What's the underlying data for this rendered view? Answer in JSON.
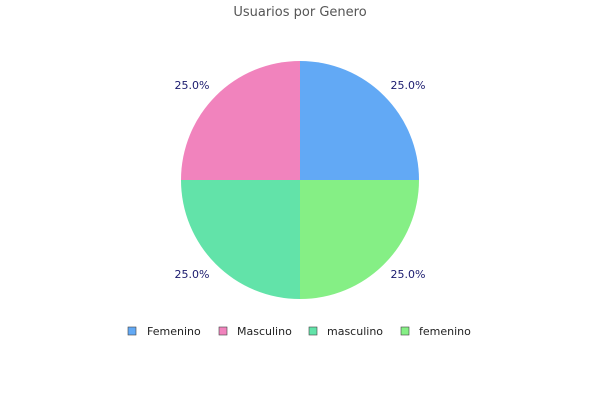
{
  "chart_data": {
    "type": "pie",
    "title": "Usuarios por Genero",
    "legend_position": "bottom",
    "slices": [
      {
        "label": "Femenino",
        "value": 25.0,
        "display": "25.0%",
        "color": "#62a9f5"
      },
      {
        "label": "Masculino",
        "value": 25.0,
        "display": "25.0%",
        "color": "#f183bd"
      },
      {
        "label": "masculino",
        "value": 25.0,
        "display": "25.0%",
        "color": "#62e3a9"
      },
      {
        "label": "femenino",
        "value": 25.0,
        "display": "25.0%",
        "color": "#85ef85"
      }
    ]
  }
}
